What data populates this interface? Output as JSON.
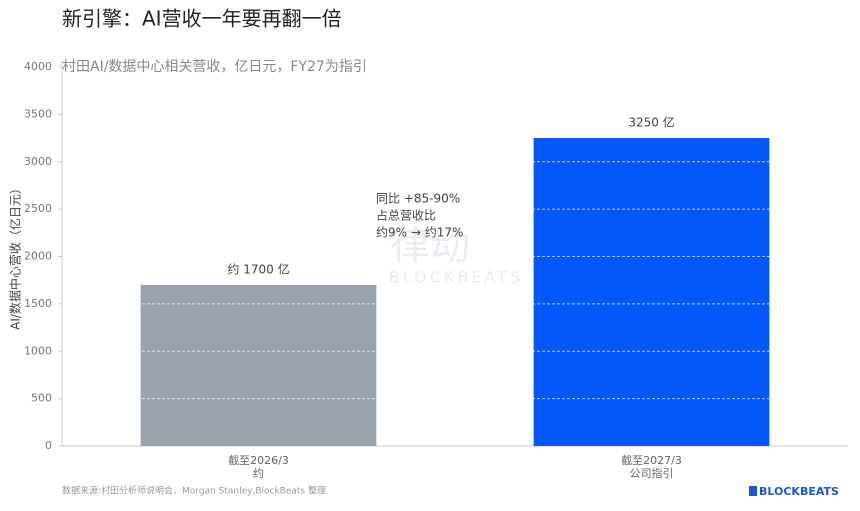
{
  "chart_data": {
    "type": "bar",
    "title": "新引擎：AI营收一年要再翻一倍",
    "subtitle": "村田AI/数据中心相关营收，亿日元，FY27为指引",
    "y_label": "AI/数据中心营收（亿日元）",
    "categories": [
      [
        "截至2026/3",
        "约"
      ],
      [
        "截至2027/3",
        "公司指引"
      ]
    ],
    "values": [
      1700,
      3250
    ],
    "value_labels": [
      "约 1700 亿",
      "3250 亿"
    ],
    "colors": [
      "#9aa2ad",
      "#0457fb"
    ],
    "ylim": [
      0,
      4000
    ],
    "yticks": [
      0,
      500,
      1000,
      1500,
      2000,
      2500,
      3000,
      3500,
      4000
    ],
    "grid": true,
    "annotation": [
      "同比 +85-90%",
      "占总营收比",
      "约9% → 约17%"
    ],
    "source": "数据来源:村田分析师说明会、Morgan Stanley,BlockBeats 整理",
    "watermark": [
      "律动",
      "BLOCKBEATS"
    ],
    "logo": "BLOCKBEATS"
  }
}
